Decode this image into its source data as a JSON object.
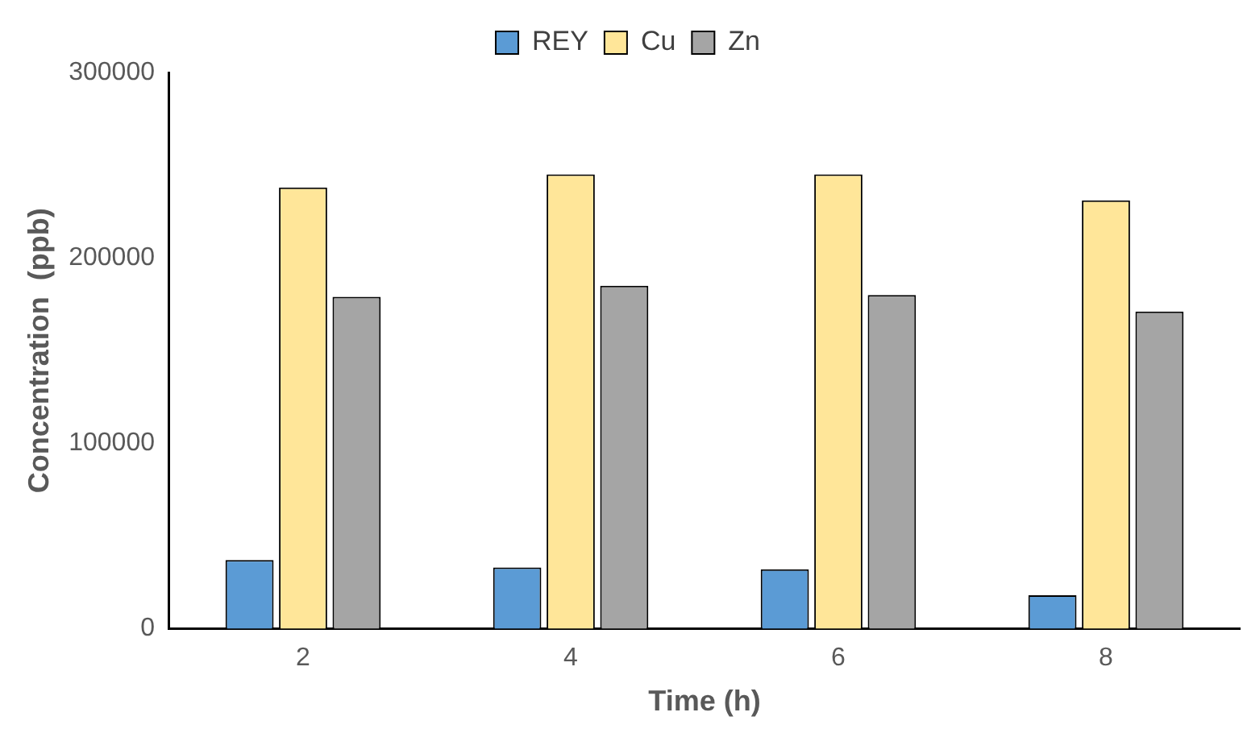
{
  "chart_data": {
    "type": "bar",
    "xlabel": "Time (h)",
    "ylabel": "Concentration  (ppb)",
    "categories": [
      "2",
      "4",
      "6",
      "8"
    ],
    "series": [
      {
        "name": "REY",
        "color": "#5b9bd5",
        "values": [
          37000,
          33000,
          32000,
          18000
        ]
      },
      {
        "name": "Cu",
        "color": "#ffe699",
        "values": [
          238000,
          245000,
          245000,
          231000
        ]
      },
      {
        "name": "Zn",
        "color": "#a5a5a5",
        "values": [
          179000,
          185000,
          180000,
          171000
        ]
      }
    ],
    "ylim": [
      0,
      300000
    ],
    "yticks": [
      0,
      100000,
      200000,
      300000
    ],
    "grid": false,
    "legend": "top"
  }
}
